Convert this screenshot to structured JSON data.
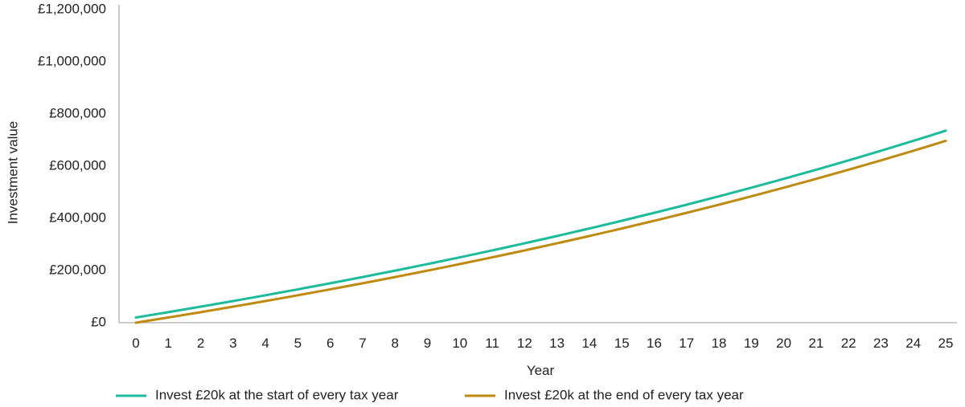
{
  "chart_data": {
    "type": "line",
    "title": "",
    "xlabel": "Year",
    "ylabel": "Investment value",
    "x": [
      0,
      1,
      2,
      3,
      4,
      5,
      6,
      7,
      8,
      9,
      10,
      11,
      12,
      13,
      14,
      15,
      16,
      17,
      18,
      19,
      20,
      21,
      22,
      23,
      24,
      25
    ],
    "ylim": [
      0,
      1200000
    ],
    "yticks": [
      0,
      200000,
      400000,
      600000,
      800000,
      1000000,
      1200000
    ],
    "ytick_labels": [
      "£0",
      "£200,000",
      "£400,000",
      "£600,000",
      "£800,000",
      "£1,000,000",
      "£1,200,000"
    ],
    "grid": false,
    "legend_position": "bottom",
    "series": [
      {
        "name": "Invest £20k at the start of every tax year",
        "color": "#1ABC9C",
        "values": [
          20000,
          40500,
          61525,
          83090,
          105210,
          127900,
          151180,
          175070,
          199590,
          224760,
          250600,
          277130,
          304380,
          332380,
          361150,
          390710,
          421100,
          452330,
          484440,
          517450,
          551390,
          586280,
          622150,
          659030,
          696940,
          735910
        ]
      },
      {
        "name": "Invest £20k at the end of every tax year",
        "color": "#C08A0E",
        "values": [
          0,
          20000,
          40500,
          61525,
          83090,
          105210,
          127900,
          151180,
          175070,
          199590,
          224760,
          250600,
          277130,
          304380,
          332380,
          361150,
          390710,
          421100,
          452330,
          484440,
          517450,
          551390,
          586280,
          622150,
          659030,
          696940
        ]
      }
    ]
  }
}
